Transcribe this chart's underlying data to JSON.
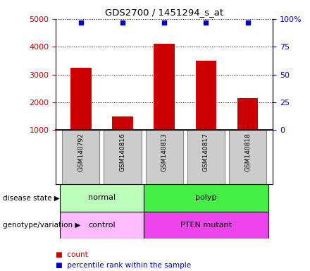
{
  "title": "GDS2700 / 1451294_s_at",
  "samples": [
    "GSM140792",
    "GSM140816",
    "GSM140813",
    "GSM140817",
    "GSM140818"
  ],
  "counts": [
    3250,
    1500,
    4100,
    3500,
    2150
  ],
  "percentile_ranks": [
    97,
    97,
    97,
    97,
    97
  ],
  "bar_color": "#cc0000",
  "dot_color": "#0000cc",
  "ylim_left": [
    1000,
    5000
  ],
  "ylim_right": [
    0,
    100
  ],
  "left_yticks": [
    1000,
    2000,
    3000,
    4000,
    5000
  ],
  "right_yticks": [
    0,
    25,
    50,
    75,
    100
  ],
  "right_ytick_labels": [
    "0",
    "25",
    "50",
    "75",
    "100%"
  ],
  "disease_state_colors": {
    "normal": "#bbffbb",
    "polyp": "#44ee44"
  },
  "genotype_colors": {
    "control": "#ffbbff",
    "PTEN mutant": "#ee44ee"
  },
  "left_ytick_color": "#cc0000",
  "right_ytick_color": "#0000cc",
  "grid_color": "black",
  "sample_box_color": "#cccccc",
  "sample_box_edge": "#888888"
}
